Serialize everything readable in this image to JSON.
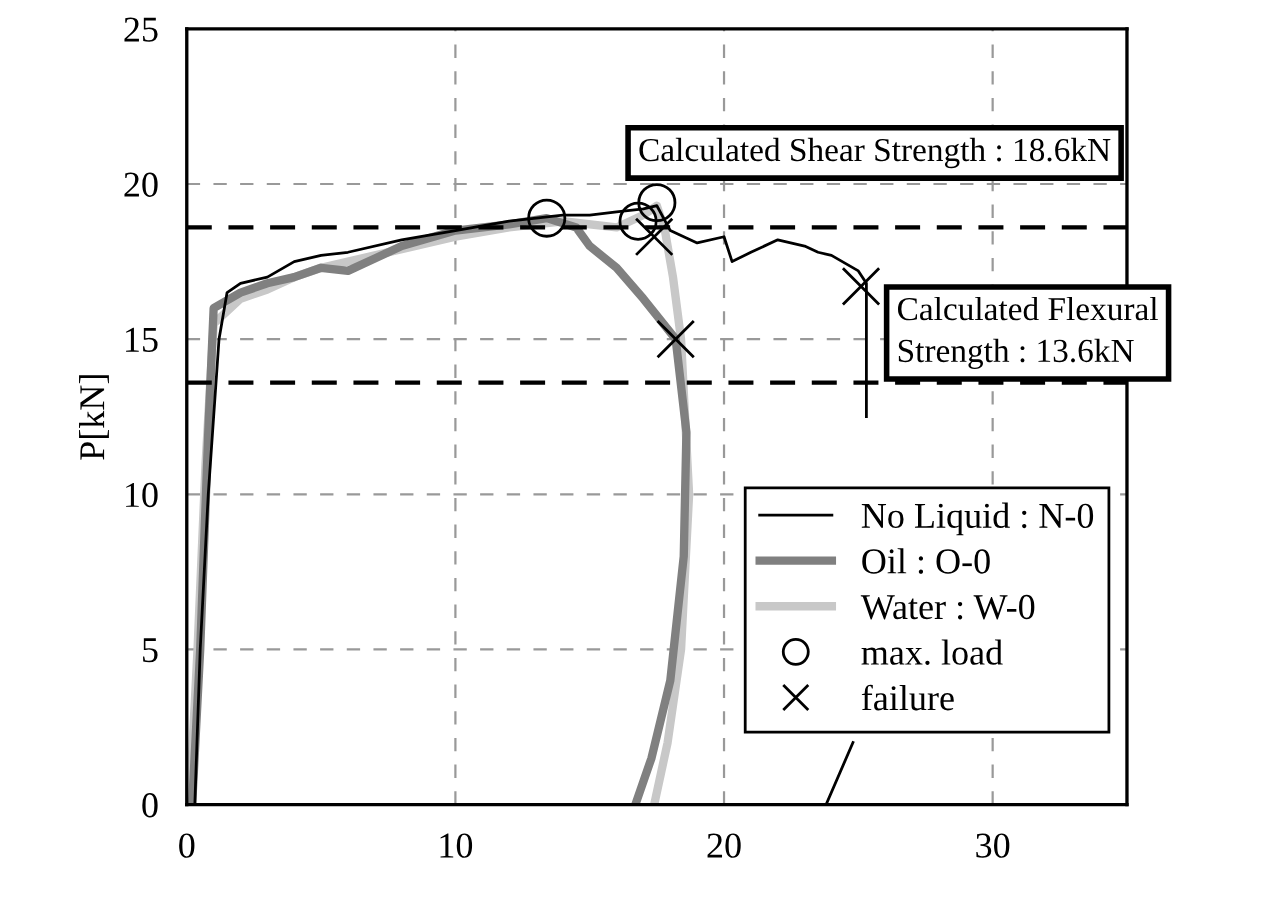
{
  "chart_data": {
    "type": "line",
    "ylabel": "P[kN]",
    "xlim": [
      0,
      35
    ],
    "ylim": [
      0,
      25
    ],
    "xticks": [
      0,
      10,
      20,
      30
    ],
    "yticks": [
      0,
      5,
      10,
      15,
      20,
      25
    ],
    "grid": true,
    "legend": "right",
    "series": [
      {
        "name": "No Liquid : N-0",
        "color": "#000000",
        "x": [
          0.3,
          0.5,
          0.8,
          1.2,
          1.5,
          2,
          3,
          4,
          5,
          6,
          8,
          10,
          12,
          13,
          14,
          15,
          16,
          17,
          17.5,
          18,
          19,
          20,
          20.3,
          21,
          22,
          23,
          23.5,
          24,
          25,
          25.3,
          25.3,
          25.2,
          24.8,
          23.8
        ],
        "values": [
          0,
          5,
          10,
          15,
          16.5,
          16.8,
          17,
          17.5,
          17.7,
          17.8,
          18.2,
          18.5,
          18.8,
          18.9,
          19.0,
          19.0,
          19.1,
          19.2,
          19.3,
          18.5,
          18.1,
          18.3,
          17.5,
          17.8,
          18.2,
          18.0,
          17.8,
          17.7,
          17.2,
          16.8,
          12.5,
          null,
          2,
          0
        ]
      },
      {
        "name": "Oil : O-0",
        "color": "#808080",
        "x": [
          0.2,
          0.5,
          0.8,
          1.0,
          2,
          3,
          4,
          5,
          6,
          7,
          8,
          10,
          12,
          13.4,
          14.5,
          15,
          16,
          17,
          18.2,
          18.6,
          18.5,
          18,
          17.3,
          16.7
        ],
        "values": [
          0,
          5,
          12,
          16,
          16.5,
          16.8,
          17,
          17.3,
          17.2,
          17.6,
          18,
          18.5,
          18.7,
          18.9,
          18.6,
          18.0,
          17.3,
          16.3,
          15,
          12,
          8,
          4,
          1.5,
          0
        ]
      },
      {
        "name": "Water : W-0",
        "color": "#c8c8c8",
        "x": [
          0.1,
          0.4,
          0.7,
          1.0,
          2,
          3,
          4,
          5,
          6,
          8,
          10,
          12,
          14,
          16,
          17,
          17.5,
          17.8,
          18.1,
          18.4,
          18.7,
          18.4,
          17.9,
          17.4
        ],
        "values": [
          0,
          5,
          11,
          15.5,
          16.3,
          16.6,
          17,
          17.3,
          17.5,
          17.9,
          18.3,
          18.6,
          18.8,
          18.6,
          19.0,
          19.3,
          18.5,
          17,
          15,
          10,
          5,
          2,
          0
        ]
      },
      {
        "name": "max. load",
        "type": "scatter",
        "marker": "circle",
        "color": "#000000",
        "x": [
          13.4,
          16.8,
          17.5
        ],
        "values": [
          18.9,
          18.8,
          19.4
        ]
      },
      {
        "name": "failure",
        "type": "scatter",
        "marker": "cross",
        "color": "#000000",
        "x": [
          18.2,
          17.4,
          25.1
        ],
        "values": [
          15.0,
          18.3,
          16.7
        ]
      }
    ],
    "ref_lines": [
      {
        "axis": "y",
        "value": 18.6,
        "label": "Calculated Shear Strength : 18.6kN",
        "color": "#000000",
        "line_style": "dashed"
      },
      {
        "axis": "y",
        "value": 13.6,
        "label": "Calculated Flexural\nStrength : 13.6kN",
        "color": "#000000",
        "line_style": "dashed"
      }
    ]
  }
}
